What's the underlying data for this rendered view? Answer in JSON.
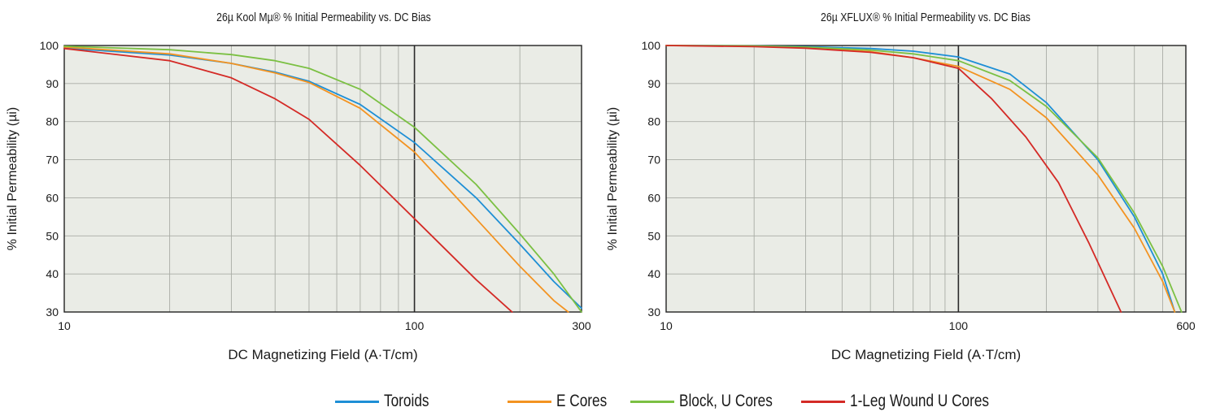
{
  "chart_data": [
    {
      "type": "line",
      "title": "26µ Kool Mµ® % Initial Permeability vs. DC Bias",
      "xlabel": "DC Magnetizing Field (A·T/cm)",
      "ylabel": "% Initial Permeability (µi)",
      "xscale": "log",
      "xlim": [
        10,
        300
      ],
      "ylim": [
        30,
        100
      ],
      "xticks": [
        "10",
        "100",
        "300"
      ],
      "yticks": [
        "30",
        "40",
        "50",
        "60",
        "70",
        "80",
        "90",
        "100"
      ],
      "grid": true,
      "series": [
        {
          "name": "Toroids",
          "x": [
            10,
            20,
            30,
            40,
            50,
            70,
            100,
            150,
            200,
            250,
            300
          ],
          "y": [
            99.3,
            97.5,
            95.3,
            93.0,
            90.6,
            84.5,
            74.5,
            60.0,
            47.8,
            38.0,
            31.0
          ]
        },
        {
          "name": "E Cores",
          "x": [
            10,
            20,
            30,
            40,
            50,
            70,
            100,
            150,
            200,
            250,
            275
          ],
          "y": [
            99.6,
            97.8,
            95.3,
            92.8,
            90.3,
            83.5,
            72.0,
            54.5,
            42.0,
            33.0,
            30.0
          ]
        },
        {
          "name": "Block, U Cores",
          "x": [
            10,
            20,
            30,
            40,
            50,
            70,
            100,
            150,
            200,
            250,
            300
          ],
          "y": [
            99.8,
            98.9,
            97.6,
            96.0,
            94.0,
            88.5,
            78.5,
            63.5,
            50.5,
            40.0,
            30.0
          ]
        },
        {
          "name": "1-Leg Wound U Cores",
          "x": [
            10,
            20,
            30,
            40,
            50,
            70,
            100,
            150,
            190
          ],
          "y": [
            99.2,
            96.0,
            91.5,
            86.0,
            80.6,
            68.5,
            54.5,
            38.5,
            30.0
          ]
        }
      ]
    },
    {
      "type": "line",
      "title": "26µ XFLUX® % Initial Permeability vs. DC Bias",
      "xlabel": "DC Magnetizing Field (A·T/cm)",
      "ylabel": "% Initial Permeability (µi)",
      "xscale": "log",
      "xlim": [
        10,
        600
      ],
      "ylim": [
        30,
        100
      ],
      "xticks": [
        "10",
        "100",
        "600"
      ],
      "yticks": [
        "30",
        "40",
        "50",
        "60",
        "70",
        "80",
        "90",
        "100"
      ],
      "grid": true,
      "series": [
        {
          "name": "Toroids",
          "x": [
            10,
            20,
            30,
            50,
            70,
            100,
            150,
            200,
            300,
            400,
            500,
            550
          ],
          "y": [
            100,
            99.9,
            99.7,
            99.2,
            98.5,
            97.0,
            92.5,
            85.0,
            70.0,
            55.0,
            40.0,
            30.0
          ]
        },
        {
          "name": "E Cores",
          "x": [
            10,
            20,
            30,
            50,
            70,
            100,
            150,
            200,
            300,
            400,
            500,
            550
          ],
          "y": [
            100,
            99.8,
            99.4,
            98.4,
            96.8,
            94.5,
            88.5,
            81.0,
            66.0,
            52.0,
            38.0,
            30.0
          ]
        },
        {
          "name": "Block, U Cores",
          "x": [
            10,
            20,
            30,
            50,
            70,
            100,
            150,
            200,
            300,
            400,
            500,
            580
          ],
          "y": [
            100,
            99.9,
            99.6,
            98.8,
            97.8,
            96.0,
            90.8,
            84.0,
            70.5,
            56.0,
            42.0,
            30.0
          ]
        },
        {
          "name": "1-Leg Wound U Cores",
          "x": [
            10,
            20,
            30,
            50,
            70,
            100,
            130,
            170,
            220,
            280,
            360
          ],
          "y": [
            100,
            99.7,
            99.3,
            98.2,
            96.8,
            94.0,
            86.0,
            76.0,
            64.0,
            48.0,
            30.0
          ]
        }
      ]
    }
  ],
  "legend": [
    {
      "name": "Toroids",
      "color": "#1e8fd6"
    },
    {
      "name": "E Cores",
      "color": "#f39321"
    },
    {
      "name": "Block, U Cores",
      "color": "#7bc043"
    },
    {
      "name": "1-Leg Wound U Cores",
      "color": "#d42a26"
    }
  ]
}
